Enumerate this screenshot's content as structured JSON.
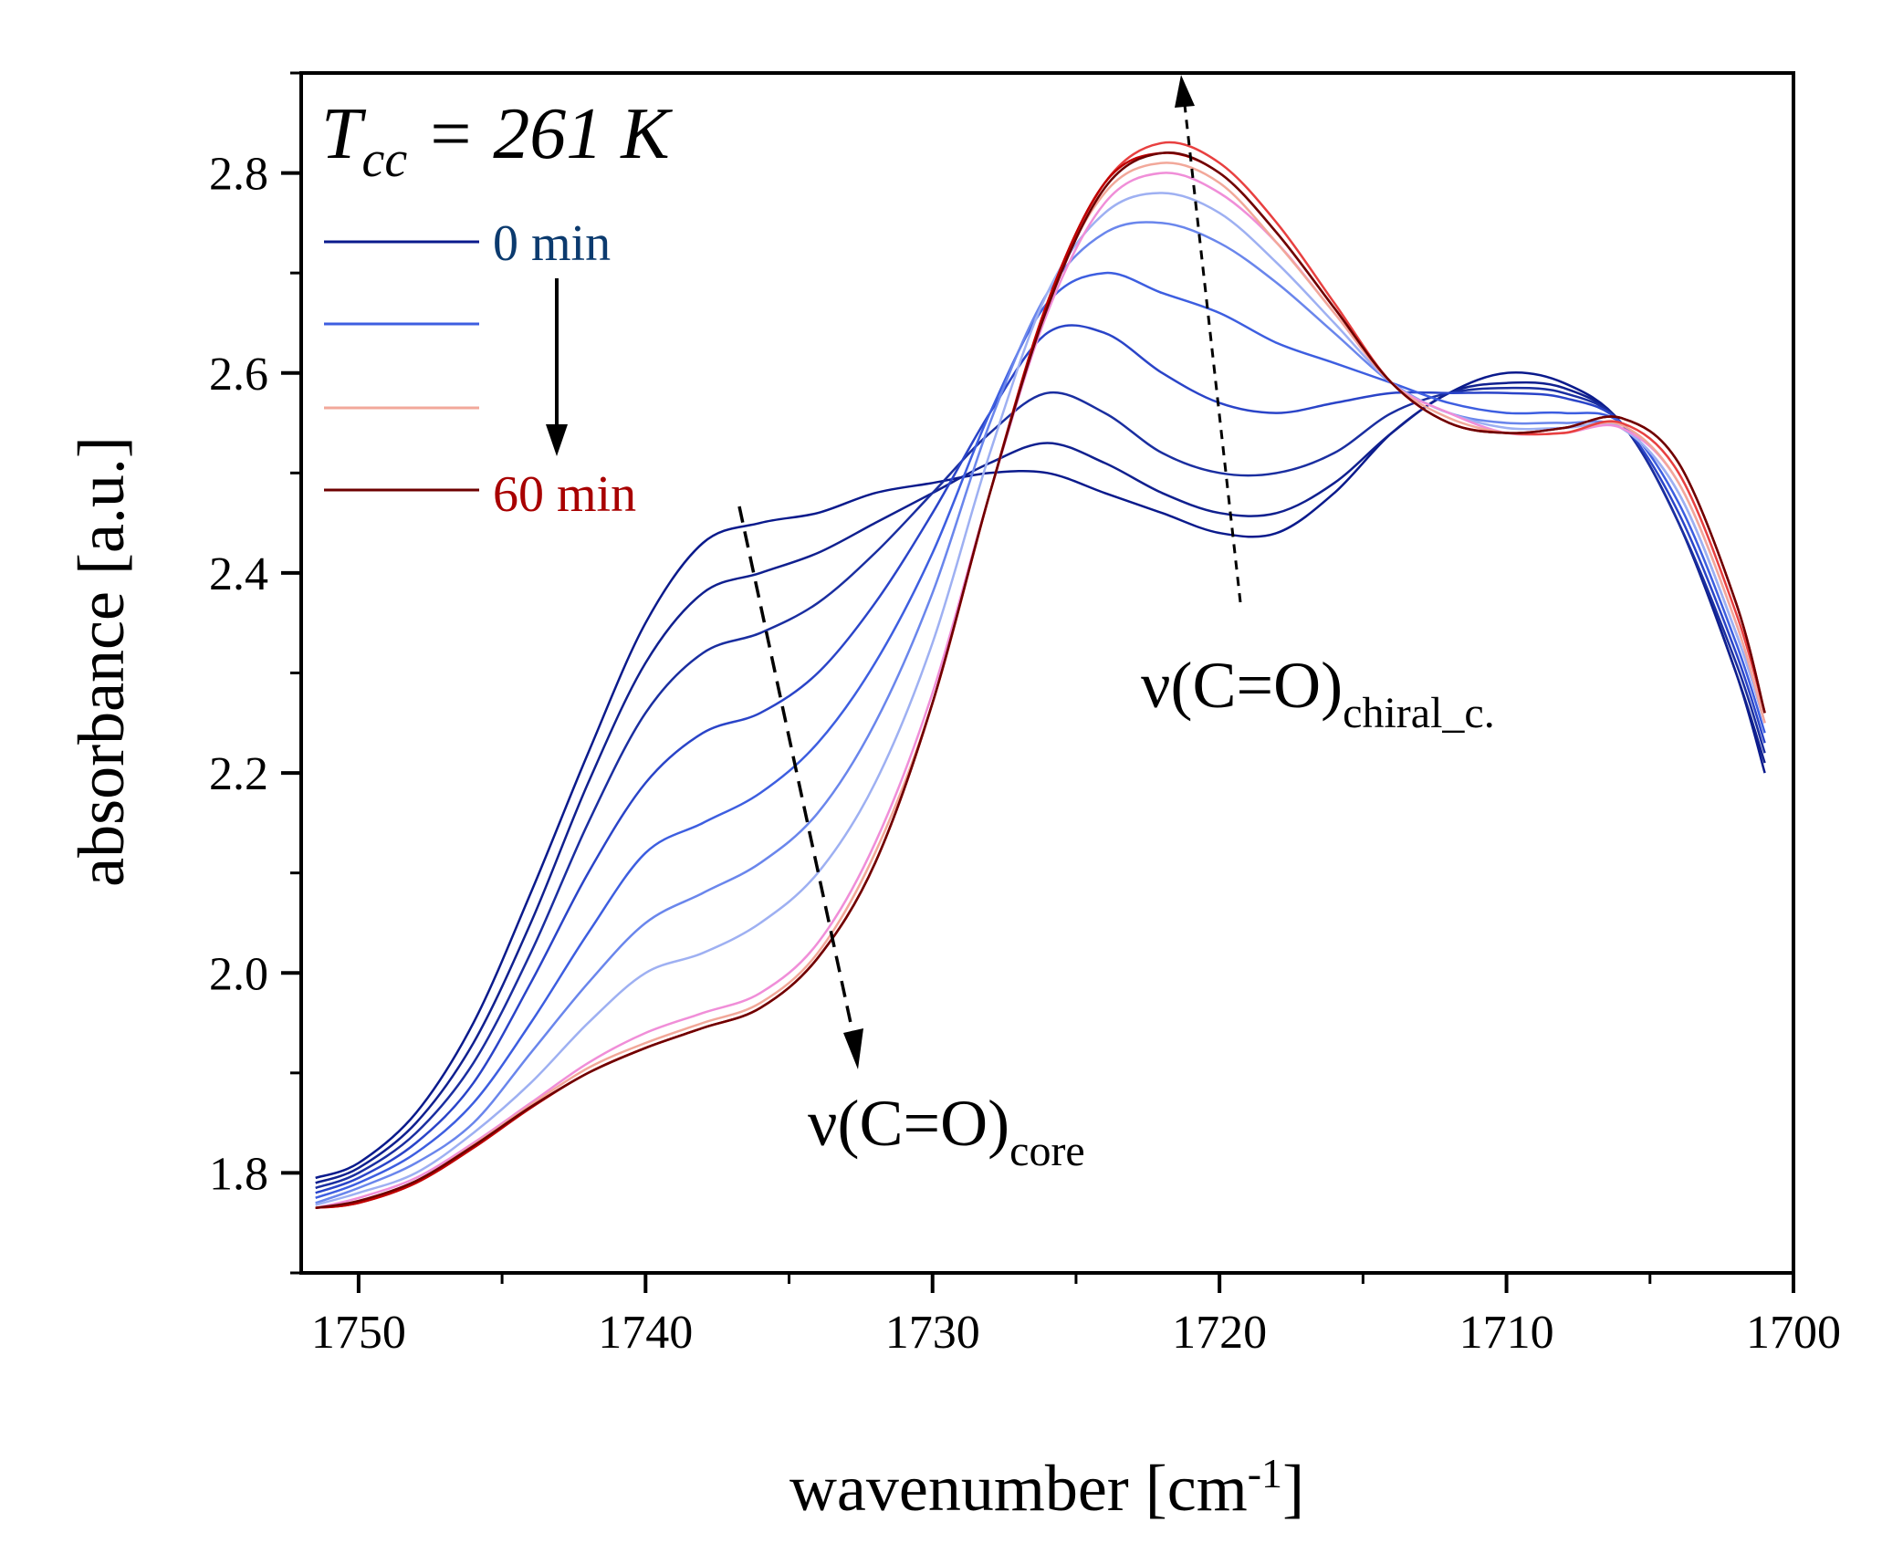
{
  "chart_data": {
    "type": "line",
    "title": "",
    "xlabel": "wavenumber [cm",
    "xlabel_sup": "-1",
    "xlabel_end": "]",
    "ylabel": "absorbance [a.u.]",
    "xlim": [
      1752,
      1700
    ],
    "ylim": [
      1.7,
      2.9
    ],
    "x_ticks": [
      1750,
      1740,
      1730,
      1720,
      1710,
      1700
    ],
    "x_tick_labels": [
      "1750",
      "1740",
      "1730",
      "1720",
      "1710",
      "1700"
    ],
    "y_ticks": [
      1.8,
      2.0,
      2.2,
      2.4,
      2.6,
      2.8
    ],
    "y_tick_labels": [
      "1.8",
      "2.0",
      "2.2",
      "2.4",
      "2.6",
      "2.8"
    ],
    "grid": false,
    "x": [
      1751.5,
      1750,
      1748,
      1746,
      1744,
      1742,
      1740,
      1738,
      1736,
      1734,
      1732,
      1730,
      1728,
      1726,
      1724,
      1722,
      1720,
      1718,
      1716,
      1714,
      1712,
      1710,
      1708,
      1706,
      1704,
      1702,
      1701
    ],
    "series": [
      {
        "color": "#0a1a8c",
        "values": [
          1.795,
          1.81,
          1.86,
          1.95,
          2.08,
          2.22,
          2.35,
          2.43,
          2.45,
          2.46,
          2.48,
          2.49,
          2.5,
          2.5,
          2.48,
          2.46,
          2.44,
          2.44,
          2.48,
          2.54,
          2.58,
          2.6,
          2.59,
          2.55,
          2.45,
          2.3,
          2.2
        ]
      },
      {
        "color": "#10208f",
        "values": [
          1.79,
          1.805,
          1.85,
          1.93,
          2.05,
          2.19,
          2.31,
          2.38,
          2.4,
          2.42,
          2.45,
          2.48,
          2.51,
          2.53,
          2.51,
          2.48,
          2.46,
          2.46,
          2.49,
          2.54,
          2.58,
          2.59,
          2.585,
          2.55,
          2.45,
          2.3,
          2.21
        ]
      },
      {
        "color": "#1a2ea0",
        "values": [
          1.785,
          1.8,
          1.84,
          1.91,
          2.02,
          2.15,
          2.26,
          2.32,
          2.34,
          2.37,
          2.42,
          2.48,
          2.54,
          2.58,
          2.56,
          2.52,
          2.5,
          2.5,
          2.52,
          2.56,
          2.58,
          2.585,
          2.58,
          2.55,
          2.45,
          2.31,
          2.22
        ]
      },
      {
        "color": "#2a44c8",
        "values": [
          1.78,
          1.795,
          1.83,
          1.89,
          1.99,
          2.1,
          2.19,
          2.24,
          2.26,
          2.3,
          2.37,
          2.46,
          2.56,
          2.64,
          2.64,
          2.6,
          2.57,
          2.56,
          2.57,
          2.58,
          2.58,
          2.58,
          2.575,
          2.55,
          2.46,
          2.32,
          2.23
        ]
      },
      {
        "color": "#3d5ee0",
        "values": [
          1.775,
          1.79,
          1.82,
          1.87,
          1.95,
          2.04,
          2.12,
          2.15,
          2.18,
          2.23,
          2.31,
          2.42,
          2.56,
          2.67,
          2.7,
          2.68,
          2.66,
          2.63,
          2.61,
          2.59,
          2.57,
          2.56,
          2.56,
          2.55,
          2.47,
          2.33,
          2.24
        ]
      },
      {
        "color": "#6a86ec",
        "values": [
          1.77,
          1.785,
          1.81,
          1.85,
          1.92,
          1.99,
          2.05,
          2.08,
          2.11,
          2.16,
          2.25,
          2.38,
          2.55,
          2.68,
          2.74,
          2.75,
          2.73,
          2.69,
          2.64,
          2.59,
          2.56,
          2.55,
          2.55,
          2.545,
          2.48,
          2.34,
          2.25
        ]
      },
      {
        "color": "#9eb0f2",
        "values": [
          1.768,
          1.78,
          1.8,
          1.84,
          1.89,
          1.95,
          2.0,
          2.02,
          2.05,
          2.1,
          2.19,
          2.33,
          2.52,
          2.68,
          2.76,
          2.78,
          2.76,
          2.71,
          2.65,
          2.59,
          2.56,
          2.545,
          2.545,
          2.545,
          2.48,
          2.34,
          2.25
        ]
      },
      {
        "color": "#f08ed8",
        "values": [
          1.765,
          1.775,
          1.795,
          1.83,
          1.87,
          1.91,
          1.94,
          1.96,
          1.98,
          2.03,
          2.13,
          2.28,
          2.48,
          2.66,
          2.77,
          2.8,
          2.78,
          2.73,
          2.66,
          2.59,
          2.56,
          2.54,
          2.54,
          2.545,
          2.49,
          2.35,
          2.25
        ]
      },
      {
        "color": "#f2a89a",
        "values": [
          1.765,
          1.772,
          1.792,
          1.828,
          1.868,
          1.905,
          1.93,
          1.95,
          1.97,
          2.02,
          2.12,
          2.27,
          2.48,
          2.67,
          2.78,
          2.81,
          2.79,
          2.73,
          2.66,
          2.59,
          2.555,
          2.54,
          2.54,
          2.548,
          2.49,
          2.35,
          2.25
        ]
      },
      {
        "color": "#e84040",
        "values": [
          1.765,
          1.77,
          1.79,
          1.826,
          1.866,
          1.9,
          1.925,
          1.945,
          1.965,
          2.015,
          2.11,
          2.27,
          2.48,
          2.67,
          2.79,
          2.83,
          2.81,
          2.75,
          2.67,
          2.59,
          2.55,
          2.54,
          2.54,
          2.55,
          2.5,
          2.36,
          2.26
        ]
      },
      {
        "color": "#c00000",
        "values": [
          1.765,
          1.77,
          1.79,
          1.825,
          1.865,
          1.9,
          1.925,
          1.945,
          1.965,
          2.015,
          2.11,
          2.27,
          2.48,
          2.67,
          2.79,
          2.82,
          2.8,
          2.74,
          2.665,
          2.59,
          2.55,
          2.54,
          2.545,
          2.555,
          2.51,
          2.37,
          2.26
        ]
      },
      {
        "color": "#6e0000",
        "values": [
          1.765,
          1.772,
          1.792,
          1.827,
          1.866,
          1.9,
          1.925,
          1.945,
          1.965,
          2.015,
          2.11,
          2.27,
          2.48,
          2.665,
          2.785,
          2.82,
          2.8,
          2.74,
          2.665,
          2.59,
          2.55,
          2.54,
          2.545,
          2.555,
          2.51,
          2.37,
          2.26
        ]
      }
    ],
    "legend_placement": "top-left",
    "legend": [
      {
        "label": "0 min",
        "color": "#0a1a8c",
        "label_color": "#0b3a6e"
      },
      {
        "label": "",
        "color": "#3d5ee0",
        "label_color": "#000000"
      },
      {
        "label": "",
        "color": "#f2a89a",
        "label_color": "#000000"
      },
      {
        "label": "60 min",
        "color": "#6e0000",
        "label_color": "#a80000"
      }
    ],
    "annotations": {
      "temperature_main": "T",
      "temperature_sub": "cc",
      "temperature_rest": " = 261 K",
      "chiral_main": "ν(C=O)",
      "chiral_sub": "chiral_c.",
      "core_main": "ν(C=O)",
      "core_sub": "core"
    }
  }
}
